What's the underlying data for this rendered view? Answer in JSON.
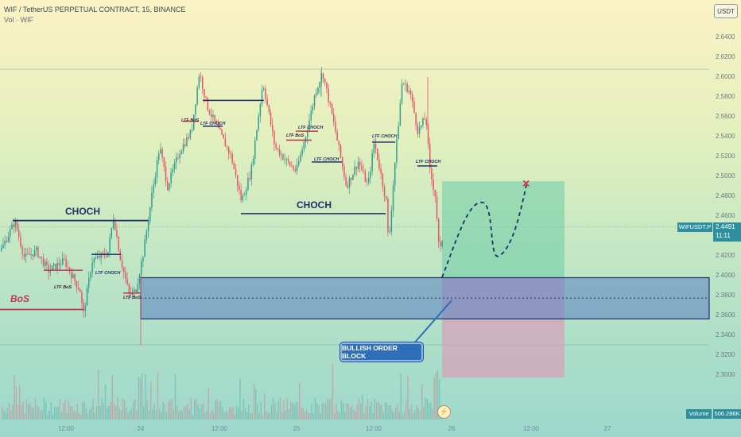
{
  "chart_data": {
    "type": "candlestick",
    "title": "WIF / TetherUS PERPETUAL CONTRACT, 15, BINANCE",
    "subtitle": "Vol · WIF",
    "currency": "USDT",
    "symbol": "WIFUSDT.P",
    "last_price": "2.4491",
    "countdown": "11:11",
    "volume_label": "Volume",
    "volume_value": "506.286K",
    "y_ticks": [
      "2.6400",
      "2.6200",
      "2.6000",
      "2.5800",
      "2.5600",
      "2.5400",
      "2.5200",
      "2.5000",
      "2.4800",
      "2.4600",
      "2.4400",
      "2.4200",
      "2.4000",
      "2.3800",
      "2.3600",
      "2.3400",
      "2.3200",
      "2.3000"
    ],
    "x_ticks": [
      "12:00",
      "24",
      "12:00",
      "25",
      "12:00",
      "26",
      "12:00",
      "27"
    ],
    "annotations": {
      "choch_left": "CHOCH",
      "choch_mid": "CHOCH",
      "bos": "BoS",
      "ltf_bos_1": "LTF BoS",
      "ltf_choch_1": "LTF CHOCH",
      "ltf_bos_2": "LTF BoS",
      "ltf_bos_3": "LTF BoS",
      "ltf_choch_2": "LTF CHOCH",
      "ltf_bos_4": "LTF BoS",
      "ltf_choch_3": "LTF CHOCH",
      "ltf_choch_4": "LTF CHOCH",
      "ltf_choch_5": "LTF CHOCH",
      "ltf_choch_6": "LTF CHOCH",
      "order_block": "BULLISH ORDER BLOCK",
      "target_mark": "×"
    },
    "levels": {
      "top_line": 2.608,
      "order_block_top": 2.398,
      "order_block_mid": 2.3775,
      "order_block_bottom": 2.3565,
      "lower_line": 2.3305,
      "choch_left_level": 2.4555,
      "choch_mid_level": 2.4625,
      "bos_level": 2.366,
      "current_line": 2.4491
    },
    "position_box": {
      "entry": 2.398,
      "target": 2.495,
      "stop": 2.2975
    },
    "colors": {
      "up": "#2e9e8f",
      "down": "#e5556a",
      "ob_fill": "#5a7fc2",
      "structure": "#1f2f6a",
      "bos": "#c0394f"
    }
  }
}
